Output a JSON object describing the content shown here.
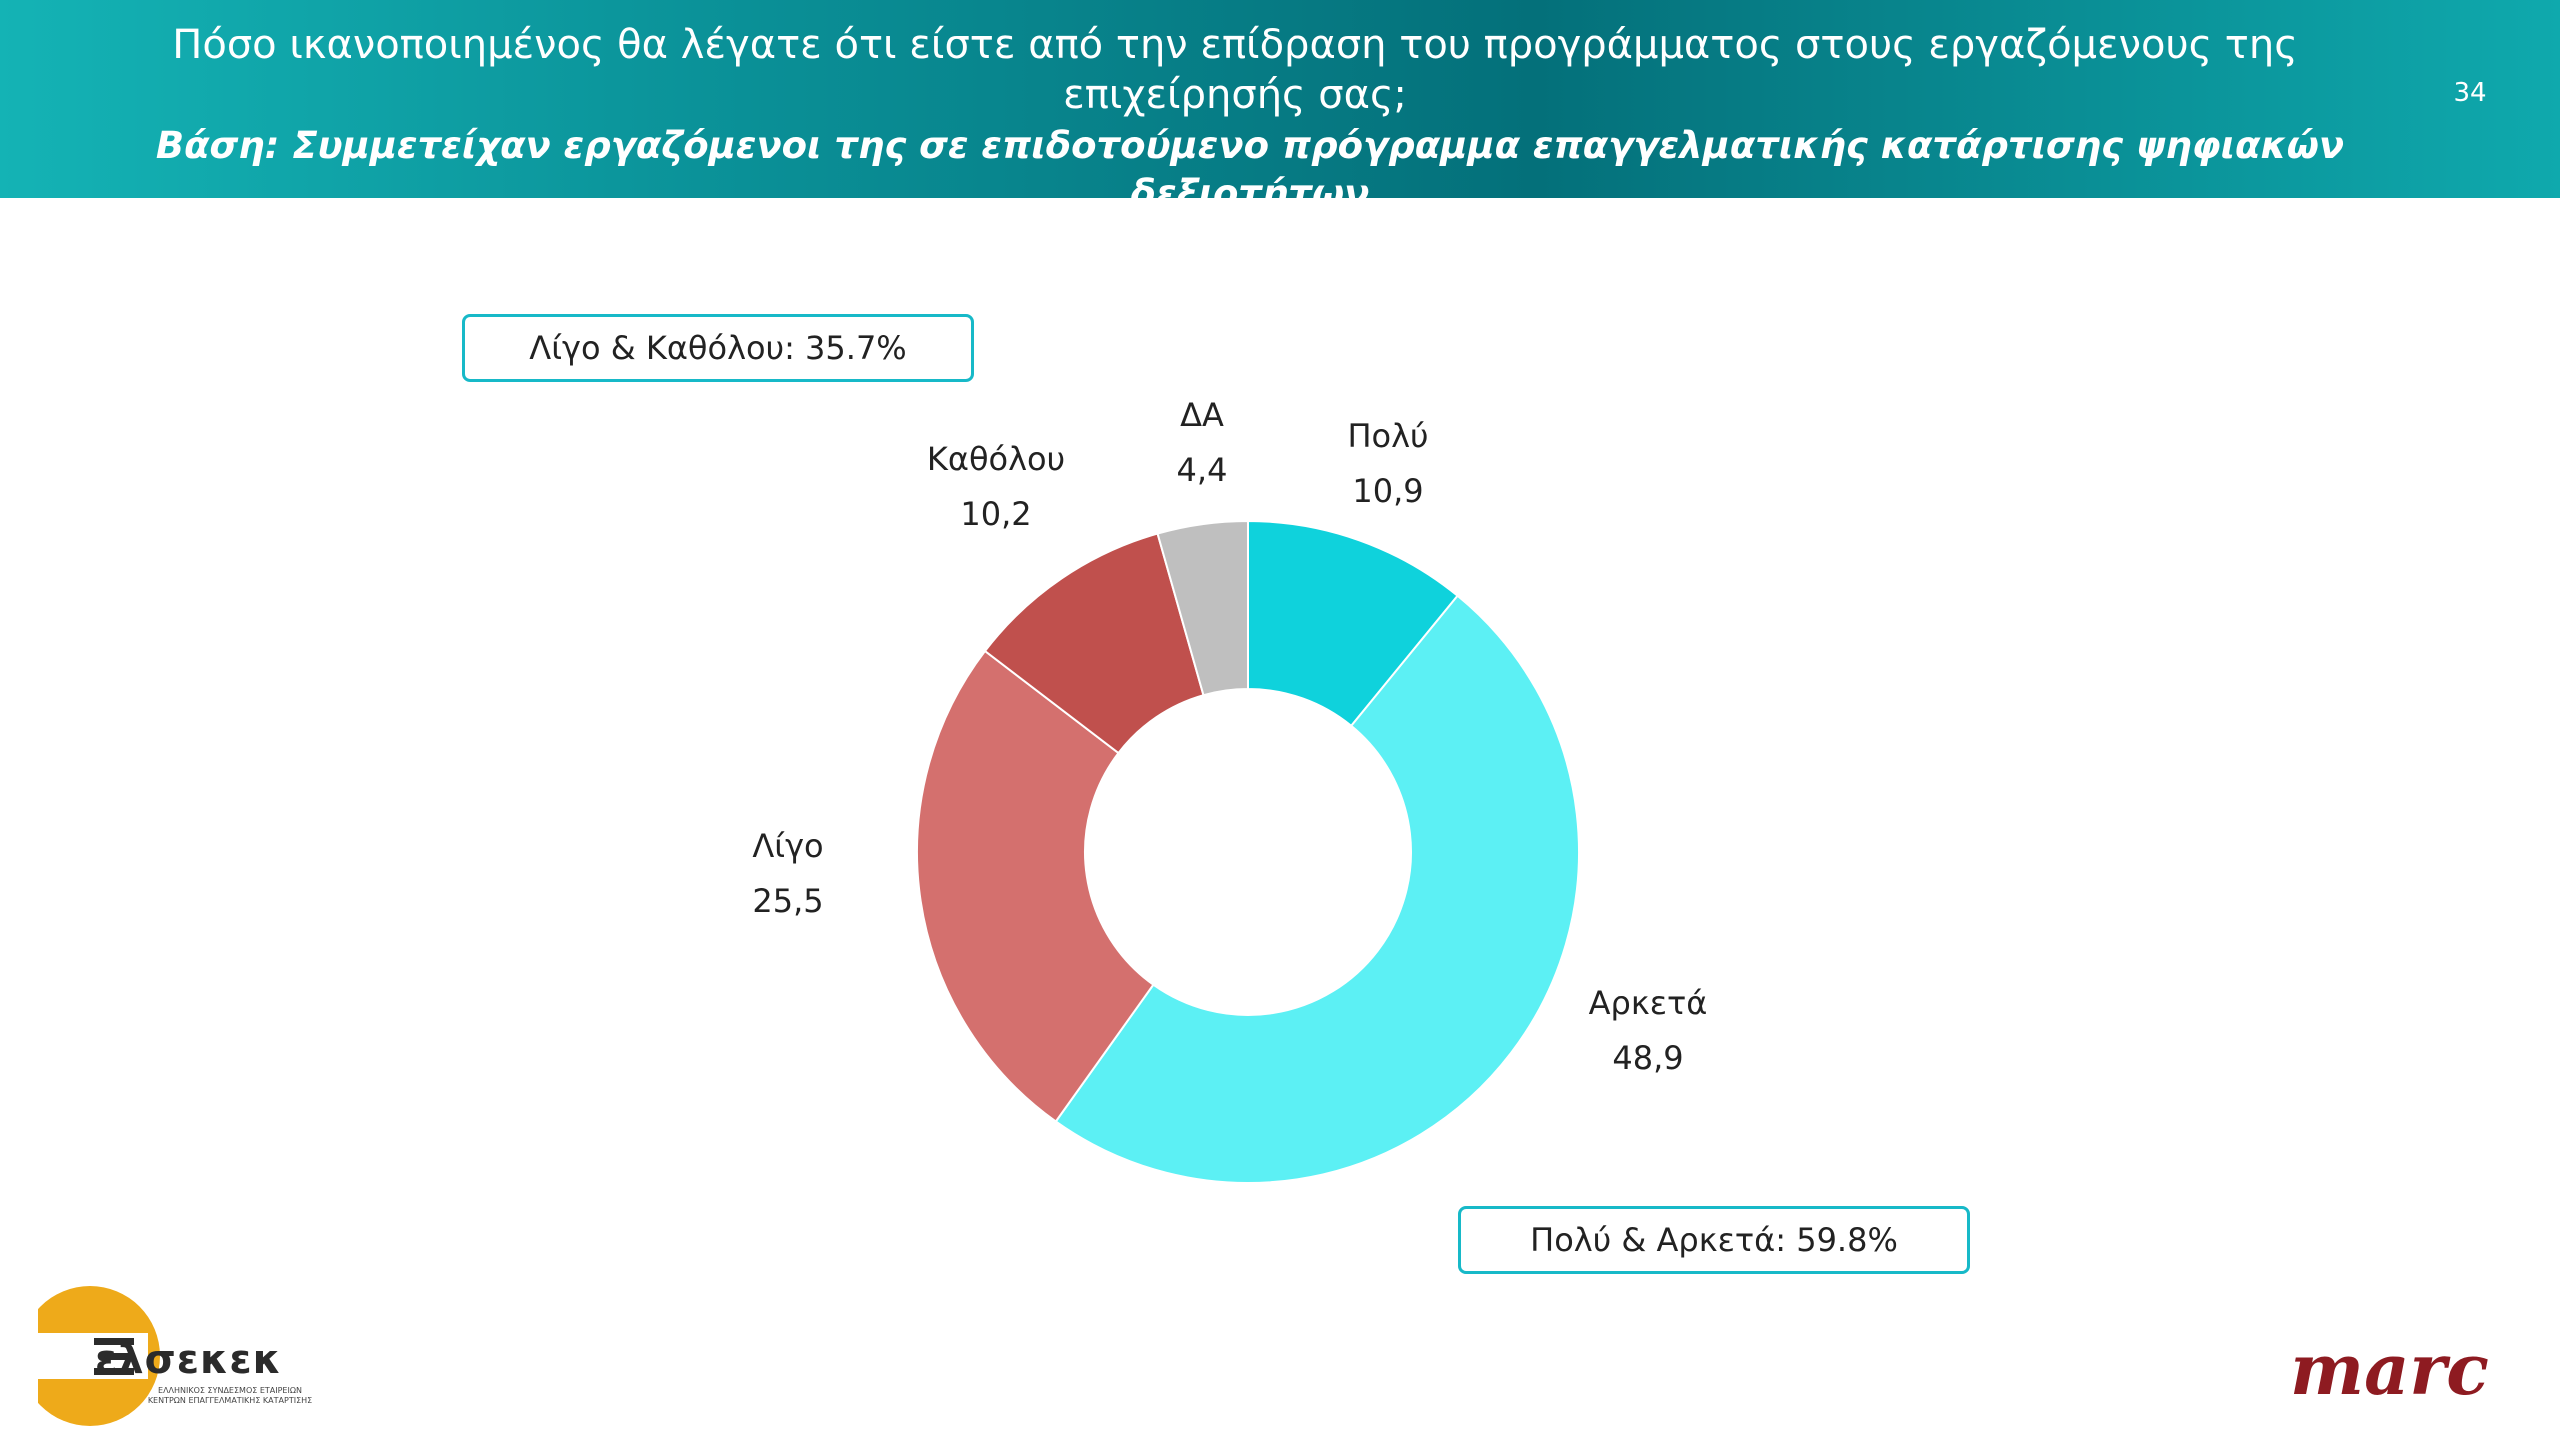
{
  "header": {
    "title": "Πόσο ικανοποιημένος θα λέγατε ότι είστε από την επίδραση του προγράμματος στους εργαζόμενους της επιχείρησής σας;",
    "base": "Βάση: Συμμετείχαν εργαζόμενοι της σε επιδοτούμενο πρόγραμμα επαγγελματικής κατάρτισης ψηφιακών δεξιοτήτων",
    "page_number": "34"
  },
  "callouts": {
    "top": "Λίγο & Καθόλου: 35.7%",
    "bottom": "Πολύ & Αρκετά: 59.8%"
  },
  "chart_data": {
    "type": "pie",
    "style": "donut",
    "categories": [
      "Πολύ",
      "Αρκετά",
      "Λίγο",
      "Καθόλου",
      "ΔΑ"
    ],
    "values": [
      10.9,
      48.9,
      25.5,
      10.2,
      4.4
    ],
    "value_labels": [
      "10,9",
      "48,9",
      "25,5",
      "10,2",
      "4,4"
    ],
    "colors": [
      "#0fd2dc",
      "#5cf0f4",
      "#d4706e",
      "#c0504d",
      "#bfbfbf"
    ]
  },
  "logos": {
    "left_name": "ελσεκεκ",
    "left_subtitle": "ΕΛΛΗΝΙΚΟΣ ΣΥΝΔΕΣΜΟΣ ΕΤΑΙΡΕΙΩΝ ΚΕΝΤΡΩΝ ΕΠΑΓΓΕΛΜΑΤΙΚΗΣ ΚΑΤΑΡΤΙΣΗΣ",
    "right_name": "marc"
  }
}
